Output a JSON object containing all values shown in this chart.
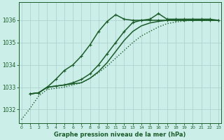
{
  "xlabel": "Graphe pression niveau de la mer (hPa)",
  "background_color": "#cceee8",
  "grid_color": "#aacccc",
  "line_color": "#1a5c2a",
  "xlim": [
    -0.3,
    23.3
  ],
  "ylim": [
    1031.4,
    1036.8
  ],
  "yticks": [
    1032,
    1033,
    1034,
    1035,
    1036
  ],
  "xticks": [
    0,
    1,
    2,
    3,
    4,
    5,
    6,
    7,
    8,
    9,
    10,
    11,
    12,
    13,
    14,
    15,
    16,
    17,
    18,
    19,
    20,
    21,
    22,
    23
  ],
  "series": [
    {
      "name": "dotted_trend",
      "x": [
        0,
        1,
        2,
        3,
        4,
        5,
        6,
        7,
        8,
        9,
        10,
        11,
        12,
        13,
        14,
        15,
        16,
        17,
        18,
        19,
        20,
        21,
        22,
        23
      ],
      "y": [
        1031.55,
        1032.05,
        1032.6,
        1032.9,
        1032.95,
        1033.0,
        1033.1,
        1033.2,
        1033.4,
        1033.65,
        1033.95,
        1034.3,
        1034.65,
        1035.0,
        1035.3,
        1035.5,
        1035.7,
        1035.85,
        1035.92,
        1035.97,
        1036.0,
        1036.0,
        1036.0,
        1036.0
      ],
      "linestyle": "dotted",
      "marker": null,
      "lw": 1.0
    },
    {
      "name": "steep_rise",
      "x": [
        1,
        2,
        3,
        4,
        5,
        6,
        7,
        8,
        9,
        10,
        11,
        12,
        13,
        14,
        15,
        16,
        17,
        18,
        19,
        20,
        21,
        22,
        23
      ],
      "y": [
        1032.7,
        1032.75,
        1033.0,
        1033.35,
        1033.75,
        1034.0,
        1034.4,
        1034.9,
        1035.5,
        1035.95,
        1036.25,
        1036.05,
        1036.0,
        1036.0,
        1036.05,
        1036.3,
        1036.05,
        1036.05,
        1036.05,
        1036.05,
        1036.05,
        1036.05,
        1036.0
      ],
      "linestyle": "solid",
      "marker": "+",
      "lw": 1.1
    },
    {
      "name": "medium_rise",
      "x": [
        1,
        2,
        3,
        4,
        5,
        6,
        7,
        8,
        9,
        10,
        11,
        12,
        13,
        14,
        15,
        16,
        17,
        18,
        19,
        20,
        21,
        22,
        23
      ],
      "y": [
        1032.7,
        1032.75,
        1033.0,
        1033.05,
        1033.1,
        1033.2,
        1033.35,
        1033.6,
        1034.0,
        1034.5,
        1035.0,
        1035.5,
        1035.9,
        1036.0,
        1036.0,
        1036.0,
        1036.0,
        1036.0,
        1036.0,
        1036.0,
        1036.0,
        1036.0,
        1036.0
      ],
      "linestyle": "solid",
      "marker": "+",
      "lw": 1.1
    },
    {
      "name": "slow_rise",
      "x": [
        1,
        2,
        3,
        4,
        5,
        6,
        7,
        8,
        9,
        10,
        11,
        12,
        13,
        14,
        15,
        16,
        17,
        18,
        19,
        20,
        21,
        22,
        23
      ],
      "y": [
        1032.7,
        1032.75,
        1033.0,
        1033.05,
        1033.1,
        1033.15,
        1033.2,
        1033.4,
        1033.7,
        1034.1,
        1034.6,
        1035.1,
        1035.5,
        1035.75,
        1035.88,
        1035.95,
        1036.0,
        1036.0,
        1036.0,
        1036.0,
        1036.0,
        1036.0,
        1036.0
      ],
      "linestyle": "solid",
      "marker": null,
      "lw": 1.1
    }
  ]
}
